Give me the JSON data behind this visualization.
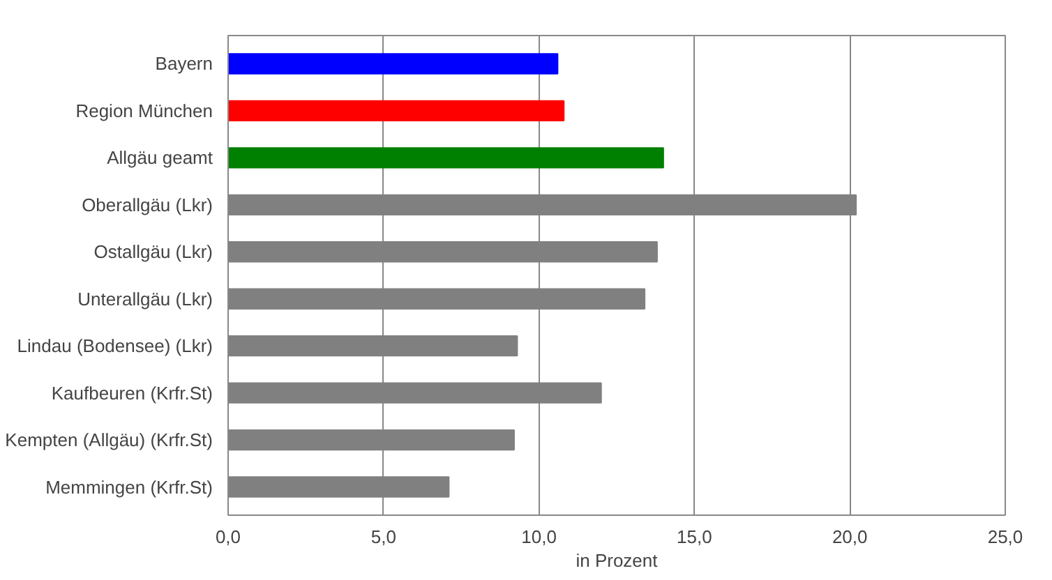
{
  "chart_data": {
    "type": "bar",
    "orientation": "horizontal",
    "xlabel": "in Prozent",
    "categories": [
      "Bayern",
      "Region München",
      "Allgäu geamt",
      "Oberallgäu (Lkr)",
      "Ostallgäu (Lkr)",
      "Unterallgäu (Lkr)",
      "Lindau (Bodensee) (Lkr)",
      "Kaufbeuren (Krfr.St)",
      "Kempten (Allgäu) (Krfr.St)",
      "Memmingen (Krfr.St)"
    ],
    "values": [
      10.6,
      10.8,
      14.0,
      20.2,
      13.8,
      13.4,
      9.3,
      12.0,
      9.2,
      7.1
    ],
    "colors": [
      "#0000ff",
      "#ff0000",
      "#008000",
      "#808080",
      "#808080",
      "#808080",
      "#808080",
      "#808080",
      "#808080",
      "#808080"
    ],
    "xlim": [
      0,
      25
    ],
    "xticks": [
      {
        "value": 0,
        "label": "0,0"
      },
      {
        "value": 5,
        "label": "5,0"
      },
      {
        "value": 10,
        "label": "10,0"
      },
      {
        "value": 15,
        "label": "15,0"
      },
      {
        "value": 20,
        "label": "20,0"
      },
      {
        "value": 25,
        "label": "25,0"
      }
    ],
    "grid": "x"
  }
}
